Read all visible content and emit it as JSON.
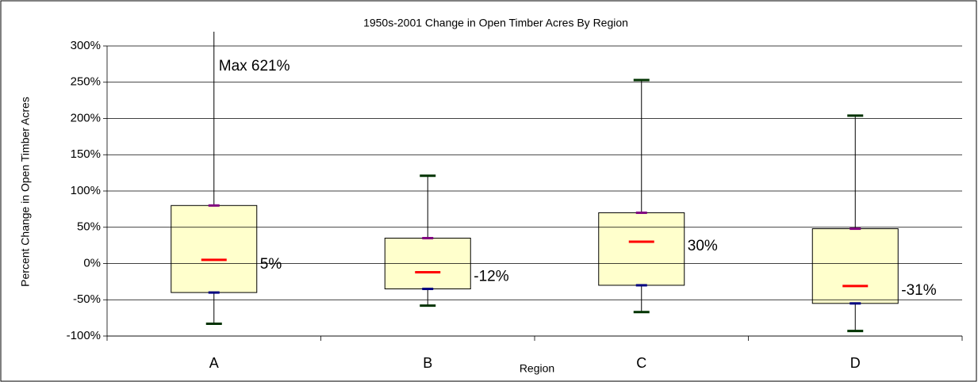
{
  "chart_data": {
    "type": "box",
    "title": "1950s-2001 Change in Open Timber Acres By Region",
    "x_label": "Region",
    "y_label": "Percent Change in Open Timber Acres",
    "categories": [
      "A",
      "B",
      "C",
      "D"
    ],
    "min": [
      -83,
      -58,
      -67,
      -93
    ],
    "q1": [
      -40,
      -35,
      -30,
      -55
    ],
    "median": [
      5,
      -12,
      30,
      -31
    ],
    "value_labels": [
      "5%",
      "-12%",
      "30%",
      "-31%"
    ],
    "q3": [
      80,
      35,
      70,
      48
    ],
    "max": [
      621,
      121,
      253,
      204
    ],
    "annotation": "Max 621%",
    "box_color": "#ffffcc",
    "median_color": "#ff0000",
    "q1_color": "#000080",
    "q3_color": "#800080",
    "whisker_color": "#003300",
    "ylim": [
      -100,
      300
    ],
    "yticks": [
      {
        "value": -100,
        "label": "-100%"
      },
      {
        "value": -50,
        "label": "-50%"
      },
      {
        "value": 0,
        "label": "0%"
      },
      {
        "value": 50,
        "label": "50%"
      },
      {
        "value": 100,
        "label": "100%"
      },
      {
        "value": 150,
        "label": "150%"
      },
      {
        "value": 200,
        "label": "200%"
      },
      {
        "value": 250,
        "label": "250%"
      },
      {
        "value": 300,
        "label": "300%"
      }
    ],
    "grid": true
  }
}
